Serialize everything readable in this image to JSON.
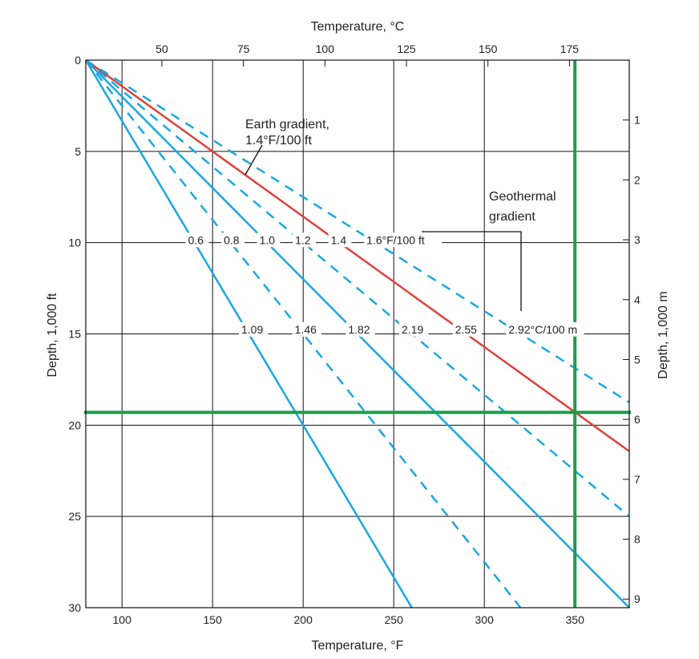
{
  "chart_data": {
    "type": "line",
    "xlabel": "Temperature, °F",
    "x2label": "Temperature, °C",
    "ylabel": "Depth, 1,000 ft",
    "y2label": "Depth, 1,000 m",
    "xlim": [
      80,
      380
    ],
    "ylim": [
      0,
      30
    ],
    "xticks": [
      100,
      150,
      200,
      250,
      300,
      350
    ],
    "x2ticks": [
      50,
      75,
      100,
      125,
      150,
      175
    ],
    "yticks": [
      0,
      5,
      10,
      15,
      20,
      25,
      30
    ],
    "y2ticks": [
      1,
      2,
      3,
      4,
      5,
      6,
      7,
      8,
      9
    ],
    "grid": true,
    "surface_temperature_F": 80,
    "series": [
      {
        "gradient_F_per_100ft": 0.6,
        "gradient_C_per_100m": "1.09",
        "label_f": "0.6",
        "style": "solid",
        "color": "#1aa7e0"
      },
      {
        "gradient_F_per_100ft": 0.8,
        "gradient_C_per_100m": "1.46",
        "label_f": "0.8",
        "style": "dashed",
        "color": "#1aa7e0"
      },
      {
        "gradient_F_per_100ft": 1.0,
        "gradient_C_per_100m": "1.82",
        "label_f": "1.0",
        "style": "solid",
        "color": "#1aa7e0"
      },
      {
        "gradient_F_per_100ft": 1.2,
        "gradient_C_per_100m": "2.19",
        "label_f": "1.2",
        "style": "dashed",
        "color": "#1aa7e0"
      },
      {
        "gradient_F_per_100ft": 1.4,
        "gradient_C_per_100m": "2.55",
        "label_f": "1.4",
        "style": "solid",
        "color": "#e0403a"
      },
      {
        "gradient_F_per_100ft": 1.6,
        "gradient_C_per_100m": "2.92°C/100 m",
        "label_f": "1.6°F/100 ft",
        "style": "dashed",
        "color": "#1aa7e0"
      }
    ],
    "reference_lines": {
      "temperature_F": 350,
      "depth_ft": 19300,
      "color": "#1a9e4a"
    },
    "annotations": {
      "earth_line1": "Earth gradient,",
      "earth_line2": "1.4°F/100 ft",
      "geo_line1": "Geothermal",
      "geo_line2": "gradient"
    }
  }
}
